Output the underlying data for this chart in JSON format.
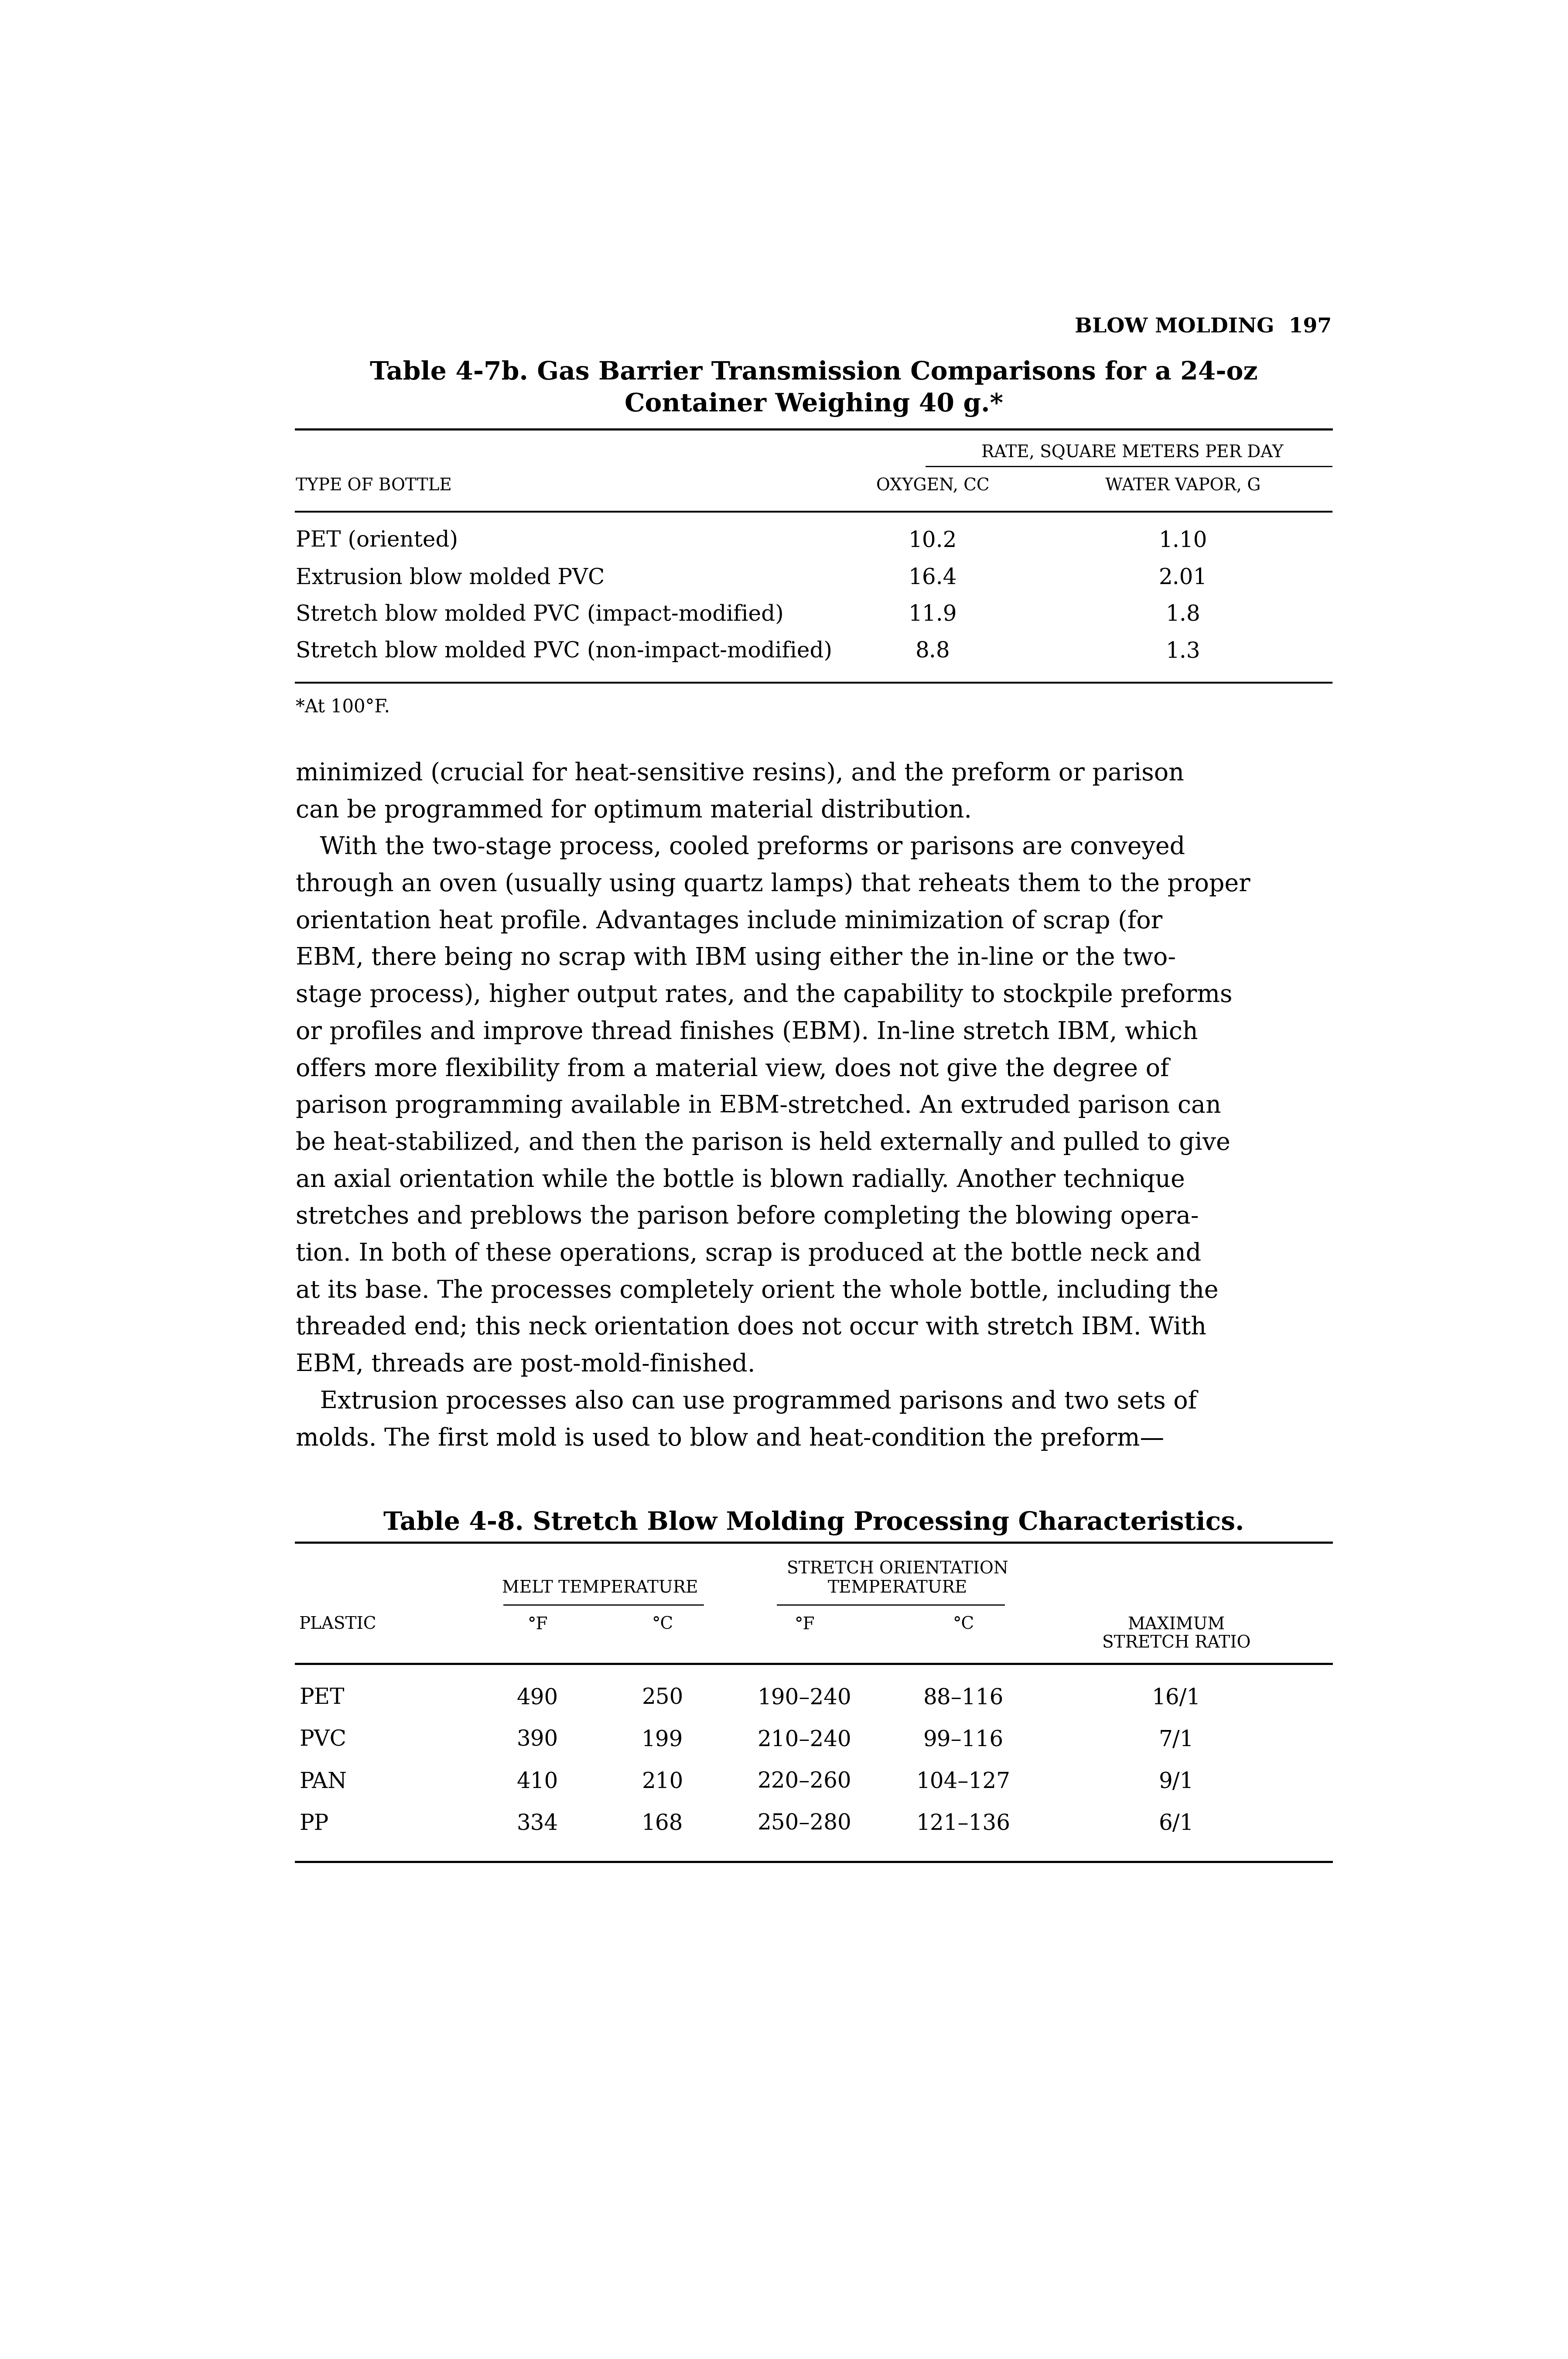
{
  "page_header": "BLOW MOLDING  197",
  "table1_title_line1": "Table 4-7b. Gas Barrier Transmission Comparisons for a 24-oz",
  "table1_title_line2": "Container Weighing 40 g.*",
  "table1_subheader": "RATE, SQUARE METERS PER DAY",
  "table1_col1_header": "TYPE OF BOTTLE",
  "table1_col2_header": "OXYGEN, CC",
  "table1_col3_header": "WATER VAPOR, G",
  "table1_rows": [
    [
      "PET (oriented)",
      "10.2",
      "1.10"
    ],
    [
      "Extrusion blow molded PVC",
      "16.4",
      "2.01"
    ],
    [
      "Stretch blow molded PVC (impact-modified)",
      "11.9",
      "1.8"
    ],
    [
      "Stretch blow molded PVC (non-impact-modified)",
      "8.8",
      "1.3"
    ]
  ],
  "table1_footnote": "*At 100°F.",
  "body_text": [
    "minimized (crucial for heat-sensitive resins), and the preform or parison",
    "can be programmed for optimum material distribution.",
    " With the two-stage process, cooled preforms or parisons are conveyed",
    "through an oven (usually using quartz lamps) that reheats them to the proper",
    "orientation heat profile. Advantages include minimization of scrap (for",
    "EBM, there being no scrap with IBM using either the in-line or the two-",
    "stage process), higher output rates, and the capability to stockpile preforms",
    "or profiles and improve thread finishes (EBM). In-line stretch IBM, which",
    "offers more flexibility from a material view, does not give the degree of",
    "parison programming available in EBM-stretched. An extruded parison can",
    "be heat-stabilized, and then the parison is held externally and pulled to give",
    "an axial orientation while the bottle is blown radially. Another technique",
    "stretches and preblows the parison before completing the blowing opera-",
    "tion. In both of these operations, scrap is produced at the bottle neck and",
    "at its base. The processes completely orient the whole bottle, including the",
    "threaded end; this neck orientation does not occur with stretch IBM. With",
    "EBM, threads are post-mold-finished.",
    " Extrusion processes also can use programmed parisons and two sets of",
    "molds. The first mold is used to blow and heat-condition the preform—"
  ],
  "table2_title": "Table 4-8. Stretch Blow Molding Processing Characteristics.",
  "table2_subheader1": "STRETCH ORIENTATION",
  "table2_subheader2_left": "MELT TEMPERATURE",
  "table2_subheader2_right": "TEMPERATURE",
  "table2_rows": [
    [
      "PET",
      "490",
      "250",
      "190–240",
      "88–116",
      "16/1"
    ],
    [
      "PVC",
      "390",
      "199",
      "210–240",
      "99–116",
      "7/1"
    ],
    [
      "PAN",
      "410",
      "210",
      "220–260",
      "104–127",
      "9/1"
    ],
    [
      "PP",
      "334",
      "168",
      "250–280",
      "121–136",
      "6/1"
    ]
  ],
  "background_color": "#ffffff",
  "text_color": "#000000",
  "line_color": "#000000"
}
